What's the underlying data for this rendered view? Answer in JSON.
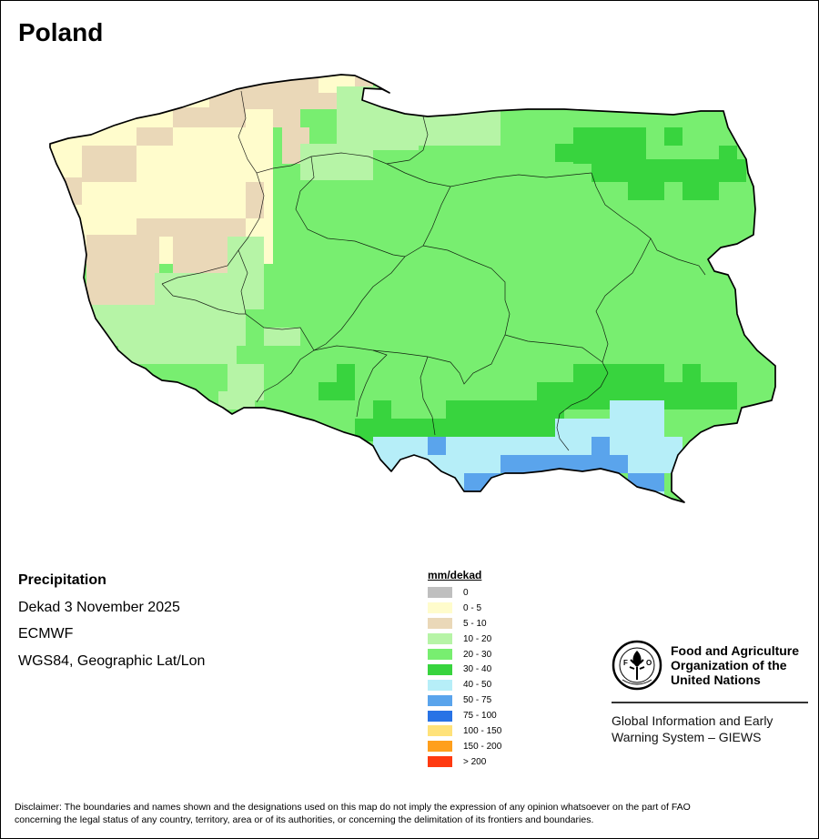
{
  "title": "Poland",
  "info": {
    "variable": "Precipitation",
    "period": "Dekad 3 November 2025",
    "source": "ECMWF",
    "projection": "WGS84, Geographic Lat/Lon"
  },
  "legend": {
    "unit": "mm/dekad",
    "classes": [
      {
        "label": "0",
        "color": "#bfbfbf"
      },
      {
        "label": "0 - 5",
        "color": "#fffccc"
      },
      {
        "label": "5 - 10",
        "color": "#ead8b8"
      },
      {
        "label": "10 - 20",
        "color": "#b6f4a6"
      },
      {
        "label": "20 - 30",
        "color": "#78ee70"
      },
      {
        "label": "30 - 40",
        "color": "#38d43e"
      },
      {
        "label": "40 - 50",
        "color": "#b6eef8"
      },
      {
        "label": "50 - 75",
        "color": "#5aa4ec"
      },
      {
        "label": "75 - 100",
        "color": "#2873e6"
      },
      {
        "label": "100 - 150",
        "color": "#ffe27a"
      },
      {
        "label": "150 - 200",
        "color": "#ff9f1c"
      },
      {
        "label": "> 200",
        "color": "#ff3a10"
      }
    ]
  },
  "fao": {
    "org_line1": "Food and Agriculture",
    "org_line2": "Organization of the",
    "org_line3": "United Nations",
    "giews_line1": "Global Information and Early",
    "giews_line2": "Warning System – GIEWS"
  },
  "disclaimer_line1": "Disclaimer: The boundaries and names shown and the designations used on this map do not imply the expression of any opinion whatsoever on the part of FAO",
  "disclaimer_line2": "concerning the legal status of any country, territory, area or of its authorities, or concerning the delimitation of its frontiers and boundaries."
}
